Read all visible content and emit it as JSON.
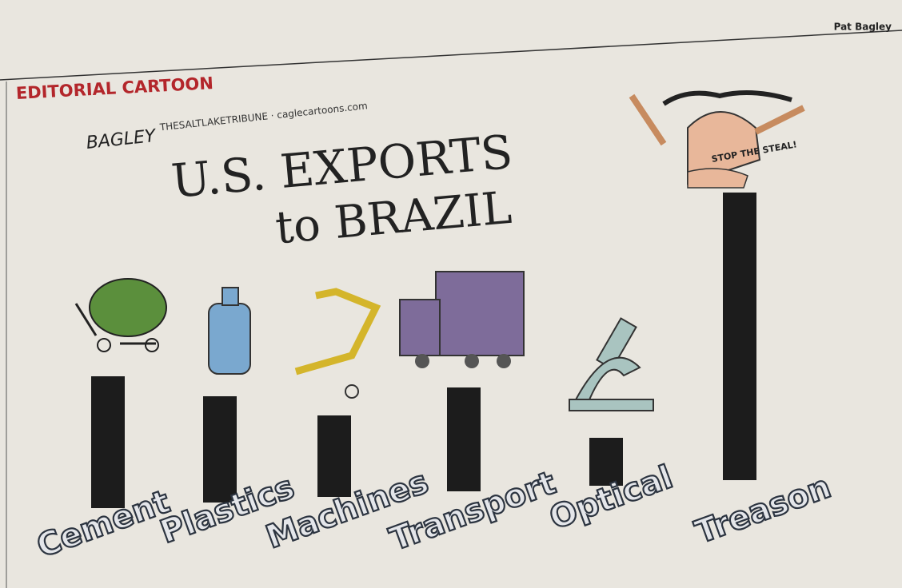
{
  "byline": "Pat Bagley",
  "section": "EDITORIAL CARTOON",
  "signature": "BAGLEY",
  "credit": "THESALTLAKETRIBUNE · caglecartoons.com",
  "sign_text": "STOP THE STEAL!",
  "chart_data": {
    "type": "bar",
    "title": "U.S. EXPORTS",
    "subtitle": "to BRAZIL",
    "categories": [
      "Cement",
      "Plastics",
      "Machines",
      "Transport",
      "Optical",
      "Treason"
    ],
    "values": [
      165,
      133,
      102,
      130,
      60,
      360
    ],
    "color": "#1c1c1c"
  }
}
